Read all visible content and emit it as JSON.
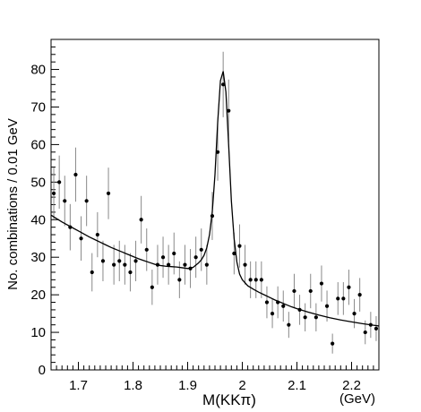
{
  "chart_data": {
    "type": "scatter",
    "title": "",
    "xlabel": "M(KKπ)",
    "xlabel_unit": "(GeV)",
    "ylabel": "No. combinations / 0.01  GeV",
    "xlim": [
      1.65,
      2.25
    ],
    "ylim": [
      0,
      88
    ],
    "xticks": [
      "1.7",
      "1.8",
      "1.9",
      "2",
      "2.1",
      "2.2"
    ],
    "xtick_values": [
      1.7,
      1.8,
      1.9,
      2.0,
      2.1,
      2.2
    ],
    "yticks": [
      "0",
      "10",
      "20",
      "30",
      "40",
      "50",
      "60",
      "70",
      "80"
    ],
    "ytick_values": [
      0,
      10,
      20,
      30,
      40,
      50,
      60,
      70,
      80
    ],
    "grid": false,
    "legend": "none",
    "series": [
      {
        "kind": "data-points-with-error-bars",
        "x": [
          1.655,
          1.665,
          1.675,
          1.685,
          1.695,
          1.705,
          1.715,
          1.725,
          1.735,
          1.745,
          1.755,
          1.765,
          1.775,
          1.785,
          1.795,
          1.805,
          1.815,
          1.825,
          1.835,
          1.845,
          1.855,
          1.865,
          1.875,
          1.885,
          1.895,
          1.905,
          1.915,
          1.925,
          1.935,
          1.945,
          1.955,
          1.965,
          1.975,
          1.985,
          1.995,
          2.005,
          2.015,
          2.025,
          2.035,
          2.045,
          2.055,
          2.065,
          2.075,
          2.085,
          2.095,
          2.105,
          2.115,
          2.125,
          2.135,
          2.145,
          2.155,
          2.165,
          2.175,
          2.185,
          2.195,
          2.205,
          2.215,
          2.225,
          2.235,
          2.245
        ],
        "y": [
          47,
          50,
          45,
          38,
          52,
          35,
          45,
          26,
          36,
          29,
          47,
          28,
          29,
          28,
          26,
          29,
          40,
          32,
          22,
          28,
          30,
          28,
          31,
          24,
          28,
          27,
          30,
          32,
          28,
          41,
          58,
          76,
          69,
          31,
          33,
          28,
          24,
          24,
          24,
          18,
          15,
          18,
          17,
          12,
          21,
          16,
          14,
          21,
          14,
          23,
          17,
          7,
          19,
          19,
          22,
          15,
          20,
          10,
          12,
          11
        ]
      },
      {
        "kind": "fit-curve",
        "x": [
          1.65,
          1.66,
          1.67,
          1.68,
          1.69,
          1.7,
          1.71,
          1.72,
          1.73,
          1.74,
          1.75,
          1.76,
          1.77,
          1.78,
          1.79,
          1.8,
          1.81,
          1.82,
          1.83,
          1.84,
          1.85,
          1.86,
          1.87,
          1.88,
          1.89,
          1.9,
          1.91,
          1.92,
          1.925,
          1.93,
          1.935,
          1.94,
          1.945,
          1.95,
          1.955,
          1.96,
          1.965,
          1.97,
          1.975,
          1.98,
          1.985,
          1.99,
          1.995,
          2.0,
          2.01,
          2.02,
          2.03,
          2.04,
          2.05,
          2.06,
          2.07,
          2.08,
          2.09,
          2.1,
          2.12,
          2.14,
          2.16,
          2.18,
          2.2,
          2.22,
          2.24,
          2.25
        ],
        "y": [
          41.2,
          40.3,
          39.4,
          38.6,
          37.8,
          37.0,
          36.2,
          35.4,
          34.7,
          34.0,
          33.3,
          32.6,
          32.0,
          31.4,
          30.8,
          30.2,
          29.6,
          29.1,
          28.6,
          28.1,
          27.8,
          27.6,
          27.5,
          27.4,
          27.2,
          27.0,
          27.3,
          28.5,
          29.3,
          30.5,
          32.5,
          36.0,
          42.0,
          52.0,
          66.0,
          77.0,
          79.5,
          74.0,
          60.0,
          45.0,
          35.0,
          28.8,
          25.5,
          24.0,
          22.4,
          21.5,
          20.7,
          20.0,
          19.3,
          18.6,
          18.0,
          17.4,
          16.8,
          16.3,
          15.4,
          14.6,
          13.9,
          13.3,
          12.8,
          12.3,
          11.9,
          11.7
        ]
      }
    ],
    "error_bar_color": "#888888",
    "marker_color": "#000000",
    "curve_color": "#000000"
  }
}
